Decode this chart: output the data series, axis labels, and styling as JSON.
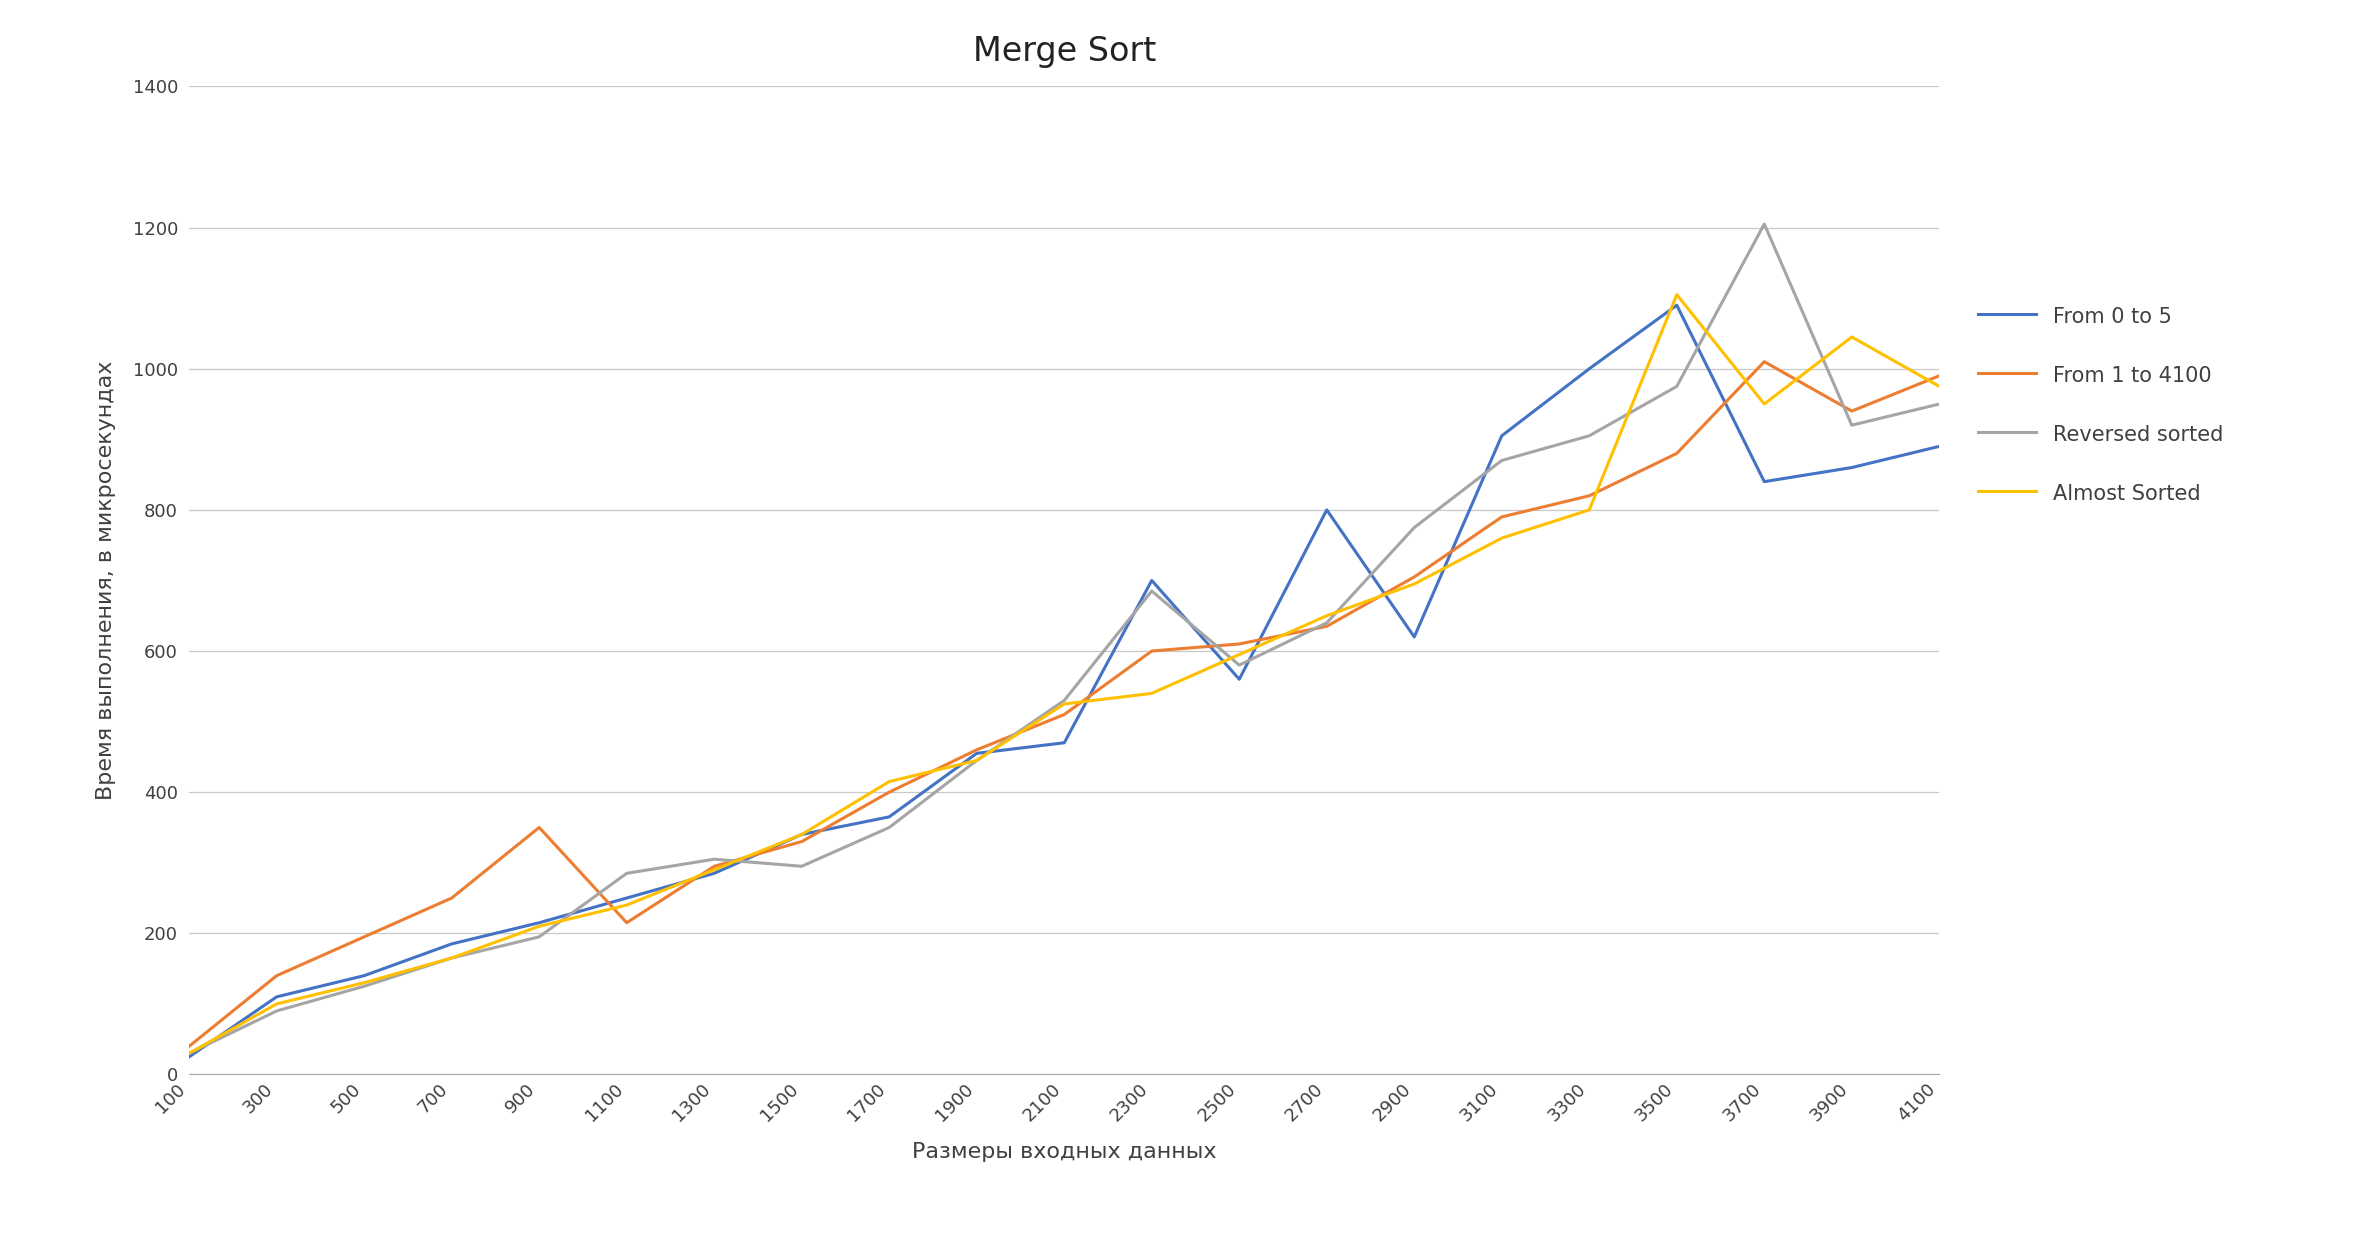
{
  "title": "Merge Sort",
  "xlabel": "Размеры входных данных",
  "ylabel": "Время выполнения, в микросекундах",
  "x": [
    100,
    300,
    500,
    700,
    900,
    1100,
    1300,
    1500,
    1700,
    1900,
    2100,
    2300,
    2500,
    2700,
    2900,
    3100,
    3300,
    3500,
    3700,
    3900,
    4100
  ],
  "series": {
    "From 0 to 5": [
      25,
      110,
      140,
      185,
      215,
      250,
      285,
      340,
      365,
      455,
      470,
      700,
      560,
      800,
      620,
      905,
      1000,
      1090,
      840,
      860,
      890
    ],
    "From 1 to 4100": [
      40,
      140,
      195,
      250,
      350,
      215,
      295,
      330,
      400,
      460,
      510,
      600,
      610,
      635,
      705,
      790,
      820,
      880,
      1010,
      940,
      990
    ],
    "Reversed sorted": [
      30,
      90,
      125,
      165,
      195,
      285,
      305,
      295,
      350,
      445,
      530,
      685,
      580,
      640,
      775,
      870,
      905,
      975,
      1205,
      920,
      950
    ],
    "Almost Sorted": [
      30,
      100,
      130,
      165,
      210,
      240,
      290,
      340,
      415,
      445,
      525,
      540,
      595,
      650,
      695,
      760,
      800,
      1105,
      950,
      1045,
      975
    ]
  },
  "colors": {
    "From 0 to 5": "#4472C4",
    "From 1 to 4100": "#ED7D31",
    "Reversed sorted": "#A5A5A5",
    "Almost Sorted": "#FFC000"
  },
  "ylim": [
    0,
    1400
  ],
  "yticks": [
    0,
    200,
    400,
    600,
    800,
    1000,
    1200,
    1400
  ],
  "background_color": "#FFFFFF",
  "plot_bg_color": "#FFFFFF",
  "grid_color": "#C8C8C8",
  "title_fontsize": 24,
  "label_fontsize": 16,
  "tick_fontsize": 13,
  "legend_fontsize": 15,
  "line_width": 2.2,
  "legend_entries": [
    "From 0 to 5",
    "From 1 to 4100",
    "Reversed sorted",
    "Almost Sorted"
  ]
}
